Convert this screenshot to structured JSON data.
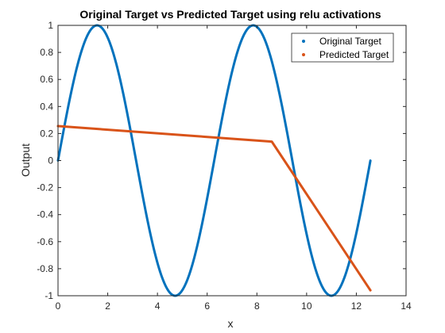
{
  "chart_data": {
    "type": "line",
    "title": "Original Target vs Predicted Target using relu activations",
    "xlabel": "x",
    "ylabel": "Output",
    "xlim": [
      0,
      14
    ],
    "ylim": [
      -1,
      1
    ],
    "xticks": [
      0,
      2,
      4,
      6,
      8,
      10,
      12,
      14
    ],
    "yticks": [
      -1,
      -0.8,
      -0.6,
      -0.4,
      -0.2,
      0,
      0.2,
      0.4,
      0.6,
      0.8,
      1
    ],
    "xtick_labels": [
      "0",
      "2",
      "4",
      "6",
      "8",
      "10",
      "12",
      "14"
    ],
    "ytick_labels": [
      "-1",
      "-0.8",
      "-0.6",
      "-0.4",
      "-0.2",
      "0",
      "0.2",
      "0.4",
      "0.6",
      "0.8",
      "1"
    ],
    "grid": false,
    "legend_position": "top-right",
    "series": [
      {
        "name": "Original Target",
        "color": "#0072BD",
        "function": "sin",
        "x_range": [
          0,
          12.566
        ]
      },
      {
        "name": "Predicted Target",
        "color": "#D95319",
        "x": [
          0,
          8.6,
          12.566
        ],
        "values": [
          0.255,
          0.14,
          -0.96
        ]
      }
    ]
  }
}
